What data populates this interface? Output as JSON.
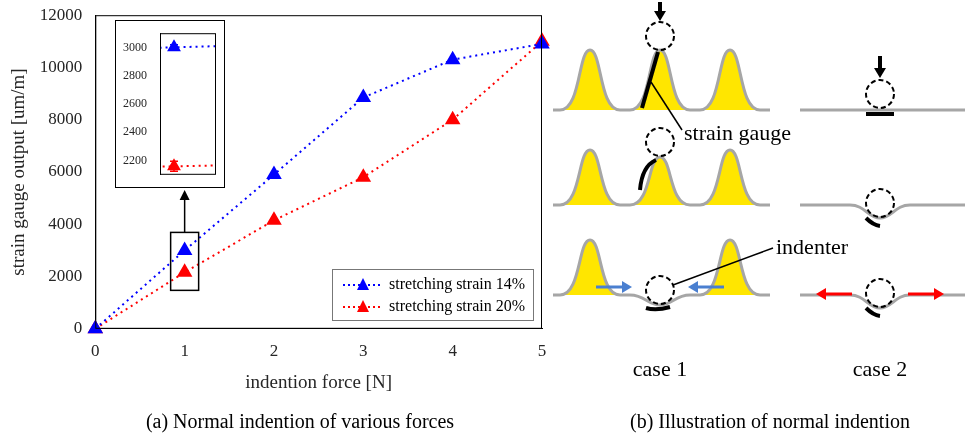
{
  "chart_data": {
    "type": "line",
    "x": [
      0,
      1,
      2,
      3,
      4,
      5
    ],
    "series": [
      {
        "name": "stretching strain 14%",
        "color": "#0000ff",
        "marker": "triangle",
        "line_style": "dotted",
        "values": [
          0,
          3000,
          5900,
          8850,
          10300,
          10900
        ],
        "errors": [
          null,
          18,
          null,
          null,
          null,
          null
        ]
      },
      {
        "name": "stretching strain 20%",
        "color": "#ff0000",
        "marker": "triangle",
        "line_style": "dotted",
        "values": [
          0,
          2160,
          4150,
          5800,
          8000,
          11000
        ],
        "errors": [
          null,
          35,
          null,
          null,
          null,
          null
        ]
      }
    ],
    "xlabel": "indention force [N]",
    "ylabel": "strain gauge output [um/m]",
    "xlim": [
      0,
      5
    ],
    "xticks": [
      0,
      1,
      2,
      3,
      4,
      5
    ],
    "ylim": [
      0,
      12000
    ],
    "yticks": [
      0,
      2000,
      4000,
      6000,
      8000,
      10000,
      12000
    ],
    "grid": false,
    "legend": "lower right",
    "caption": "(a) Normal indention of various forces",
    "inset": {
      "xlim": [
        0.999,
        1.003
      ],
      "ylim": [
        2100,
        3100
      ],
      "yticks": [
        2200,
        2400,
        2600,
        2800,
        3000
      ],
      "tick_labels": "y"
    }
  },
  "diagram": {
    "caption": "(b) Illustration of normal indention",
    "labels": {
      "strain_gauge": "strain gauge",
      "indenter": "indenter"
    },
    "cases": [
      "case 1",
      "case 2"
    ]
  }
}
